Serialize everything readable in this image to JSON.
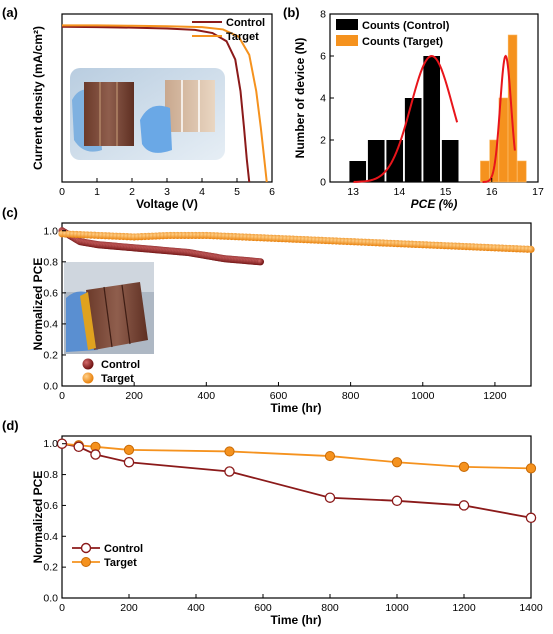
{
  "colors": {
    "control": "#8b1a1a",
    "control_dark": "#6e1111",
    "target": "#f5921e",
    "fit": "#e8151b"
  },
  "chart_data": [
    {
      "panel": "(a)",
      "type": "line",
      "xlabel": "Voltage (V)",
      "ylabel": "Current density (mA/cm²)",
      "xlim": [
        0,
        6
      ],
      "xticks": [
        "0",
        "1",
        "2",
        "3",
        "4",
        "5",
        "6"
      ],
      "legend_placement": "top-right",
      "series": [
        {
          "name": "Control",
          "color_key": "control",
          "x": [
            0,
            1,
            2,
            3,
            3.8,
            4.3,
            4.7,
            4.95,
            5.1,
            5.2,
            5.28,
            5.35
          ],
          "y": [
            3.42,
            3.41,
            3.4,
            3.38,
            3.35,
            3.28,
            3.1,
            2.7,
            2.0,
            1.2,
            0.5,
            0
          ]
        },
        {
          "name": "Target",
          "color_key": "target",
          "x": [
            0,
            1,
            2,
            3,
            4,
            4.6,
            5.05,
            5.35,
            5.55,
            5.68,
            5.78,
            5.85
          ],
          "y": [
            3.45,
            3.45,
            3.44,
            3.43,
            3.41,
            3.36,
            3.2,
            2.8,
            2.0,
            1.2,
            0.5,
            0
          ]
        }
      ]
    },
    {
      "panel": "(b)",
      "type": "bar",
      "xlabel": "PCE (%)",
      "ylabel": "Number of device (N)",
      "xlim": [
        12.5,
        17
      ],
      "ylim": [
        0,
        8
      ],
      "xticks": [
        "13",
        "14",
        "15",
        "16",
        "17"
      ],
      "yticks": [
        "0",
        "2",
        "4",
        "6",
        "8"
      ],
      "legend_placement": "top-left",
      "series": [
        {
          "name": "Counts (Control)",
          "color_key": "control_bar",
          "x": [
            13.1,
            13.5,
            13.9,
            14.3,
            14.7,
            15.1
          ],
          "values": [
            1,
            2,
            2,
            4,
            6,
            2
          ],
          "bin_width": 0.36
        },
        {
          "name": "Counts (Target)",
          "color_key": "target",
          "x": [
            15.85,
            16.05,
            16.25,
            16.45,
            16.65
          ],
          "values": [
            1,
            2,
            4,
            7,
            1
          ],
          "bin_width": 0.19
        }
      ]
    },
    {
      "panel": "(c)",
      "type": "scatter",
      "xlabel": "Time (hr)",
      "ylabel": "Normalized PCE",
      "xlim": [
        0,
        1300
      ],
      "ylim": [
        0,
        1.05
      ],
      "xticks": [
        "0",
        "200",
        "400",
        "600",
        "800",
        "1000",
        "1200"
      ],
      "yticks": [
        "0.0",
        "0.2",
        "0.4",
        "0.6",
        "0.8",
        "1.0"
      ],
      "legend_placement": "bottom-left",
      "series": [
        {
          "name": "Control",
          "color_key": "control",
          "x": [
            0,
            50,
            100,
            150,
            200,
            250,
            300,
            350,
            400,
            450,
            500,
            550
          ],
          "y": [
            1.0,
            0.93,
            0.91,
            0.9,
            0.89,
            0.88,
            0.87,
            0.86,
            0.84,
            0.82,
            0.81,
            0.8
          ]
        },
        {
          "name": "Target",
          "color_key": "target",
          "x": [
            0,
            100,
            200,
            300,
            400,
            500,
            600,
            700,
            800,
            900,
            1000,
            1100,
            1200,
            1300
          ],
          "y": [
            0.98,
            0.97,
            0.96,
            0.97,
            0.97,
            0.96,
            0.95,
            0.94,
            0.93,
            0.92,
            0.91,
            0.9,
            0.89,
            0.88
          ]
        }
      ]
    },
    {
      "panel": "(d)",
      "type": "line",
      "xlabel": "Time (hr)",
      "ylabel": "Normalized PCE",
      "xlim": [
        0,
        1400
      ],
      "ylim": [
        0,
        1.05
      ],
      "xticks": [
        "0",
        "200",
        "400",
        "600",
        "800",
        "1000",
        "1200",
        "1400"
      ],
      "yticks": [
        "0.0",
        "0.2",
        "0.4",
        "0.6",
        "0.8",
        "1.0"
      ],
      "legend_placement": "bottom-left",
      "series": [
        {
          "name": "Control",
          "color_key": "control",
          "marker": "open-circle",
          "x": [
            0,
            50,
            100,
            200,
            500,
            800,
            1000,
            1200,
            1400
          ],
          "y": [
            1.0,
            0.98,
            0.93,
            0.88,
            0.82,
            0.65,
            0.63,
            0.6,
            0.52
          ]
        },
        {
          "name": "Target",
          "color_key": "target",
          "marker": "filled-circle",
          "x": [
            0,
            50,
            100,
            200,
            500,
            800,
            1000,
            1200,
            1400
          ],
          "y": [
            1.0,
            0.99,
            0.98,
            0.96,
            0.95,
            0.92,
            0.88,
            0.85,
            0.84
          ]
        }
      ]
    }
  ]
}
